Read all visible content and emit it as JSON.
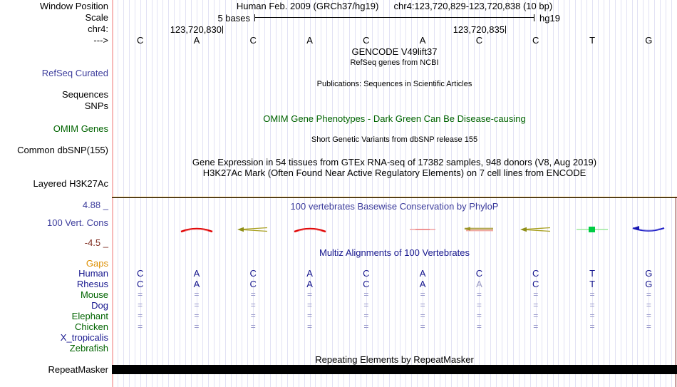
{
  "title": {
    "assembly": "Human Feb. 2009 (GRCh37/hg19)",
    "position": "chr4:123,720,829-123,720,838 (10 bp)"
  },
  "scale": {
    "label": "5 bases",
    "genome": "hg19"
  },
  "ruler": {
    "chrom": "chr4:",
    "tick_left": "123,720,830",
    "tick_right": "123,720,835",
    "strand_arrow": "--->"
  },
  "track_labels": {
    "window_position": "Window Position",
    "scale": "Scale",
    "refseq_curated": "RefSeq Curated",
    "sequences": "Sequences",
    "snps": "SNPs",
    "omim_genes": "OMIM Genes",
    "common_dbsnp": "Common dbSNP(155)",
    "layered_h3k27ac": "Layered H3K27Ac",
    "cons_max": "4.88 _",
    "cons_name": "100 Vert. Cons",
    "cons_min": "-4.5 _",
    "repeatmasker": "RepeatMasker"
  },
  "center_messages": {
    "gencode": "GENCODE V49lift37",
    "refseq_sub": "RefSeq genes from NCBI",
    "publications": "Publications: Sequences in Scientific Articles",
    "omim_header": "OMIM Gene Phenotypes - Dark Green Can Be Disease-causing",
    "dbsnp_sub": "Short Genetic Variants from dbSNP release 155",
    "gtex": "Gene Expression in 54 tissues from GTEx RNA-seq of 17382 samples, 948 donors (V8, Aug 2019)",
    "h3k27ac_sub": "H3K27Ac Mark (Often Found Near Active Regulatory Elements) on 7 cell lines from ENCODE",
    "phylop_header": "100 vertebrates Basewise Conservation by PhyloP",
    "multiz_header": "Multiz Alignments of 100 Vertebrates",
    "repeat_header": "Repeating Elements by RepeatMasker"
  },
  "sequence": {
    "bases": [
      "C",
      "A",
      "C",
      "A",
      "C",
      "A",
      "C",
      "C",
      "T",
      "G"
    ]
  },
  "phylop": {
    "wiggles": [
      null,
      "red-arch",
      "olive-left-arrow",
      "red-arch",
      null,
      "pink-flat",
      "tan-flat",
      "olive-left-arrow",
      "green-mid-dot",
      "blue-dip"
    ]
  },
  "multiz": {
    "species": [
      {
        "label": "Gaps",
        "label_color": "orange",
        "cells": [
          "",
          "",
          "",
          "",
          "",
          "",
          "",
          "",
          "",
          ""
        ]
      },
      {
        "label": "Human",
        "label_color": "navy",
        "cells": [
          "C",
          "A",
          "C",
          "A",
          "C",
          "A",
          "C",
          "C",
          "T",
          "G"
        ]
      },
      {
        "label": "Rhesus",
        "label_color": "navy",
        "cells": [
          "C",
          "A",
          "C",
          "A",
          "C",
          "A",
          "A",
          "C",
          "T",
          "G"
        ],
        "faded": [
          6
        ]
      },
      {
        "label": "Mouse",
        "label_color": "green",
        "cells": [
          "=",
          "=",
          "=",
          "=",
          "=",
          "=",
          "=",
          "=",
          "=",
          "="
        ]
      },
      {
        "label": "Dog",
        "label_color": "navy",
        "cells": [
          "=",
          "=",
          "=",
          "=",
          "=",
          "=",
          "=",
          "=",
          "=",
          "="
        ]
      },
      {
        "label": "Elephant",
        "label_color": "green",
        "cells": [
          "=",
          "=",
          "=",
          "=",
          "=",
          "=",
          "=",
          "=",
          "=",
          "="
        ]
      },
      {
        "label": "Chicken",
        "label_color": "green",
        "cells": [
          "=",
          "=",
          "=",
          "=",
          "=",
          "=",
          "=",
          "=",
          "=",
          "="
        ]
      },
      {
        "label": "X_tropicalis",
        "label_color": "navy",
        "cells": [
          "",
          "",
          "",
          "",
          "",
          "",
          "",
          "",
          "",
          ""
        ]
      },
      {
        "label": "Zebrafish",
        "label_color": "green",
        "cells": [
          "",
          "",
          "",
          "",
          "",
          "",
          "",
          "",
          "",
          ""
        ]
      }
    ]
  },
  "colors": {
    "track_label_blue": "#3c3c9c",
    "track_label_green": "#006400",
    "gaps_orange": "#dd8f00",
    "cons_min_maroon": "#7d2a1d",
    "phylop_positive_red": "#e00000",
    "phylop_negative_blue": "#2020c8",
    "grid_lavender": "#e2e2f4",
    "window_guide_pink": "#f7baba",
    "repeat_bar_black": "#000000"
  }
}
